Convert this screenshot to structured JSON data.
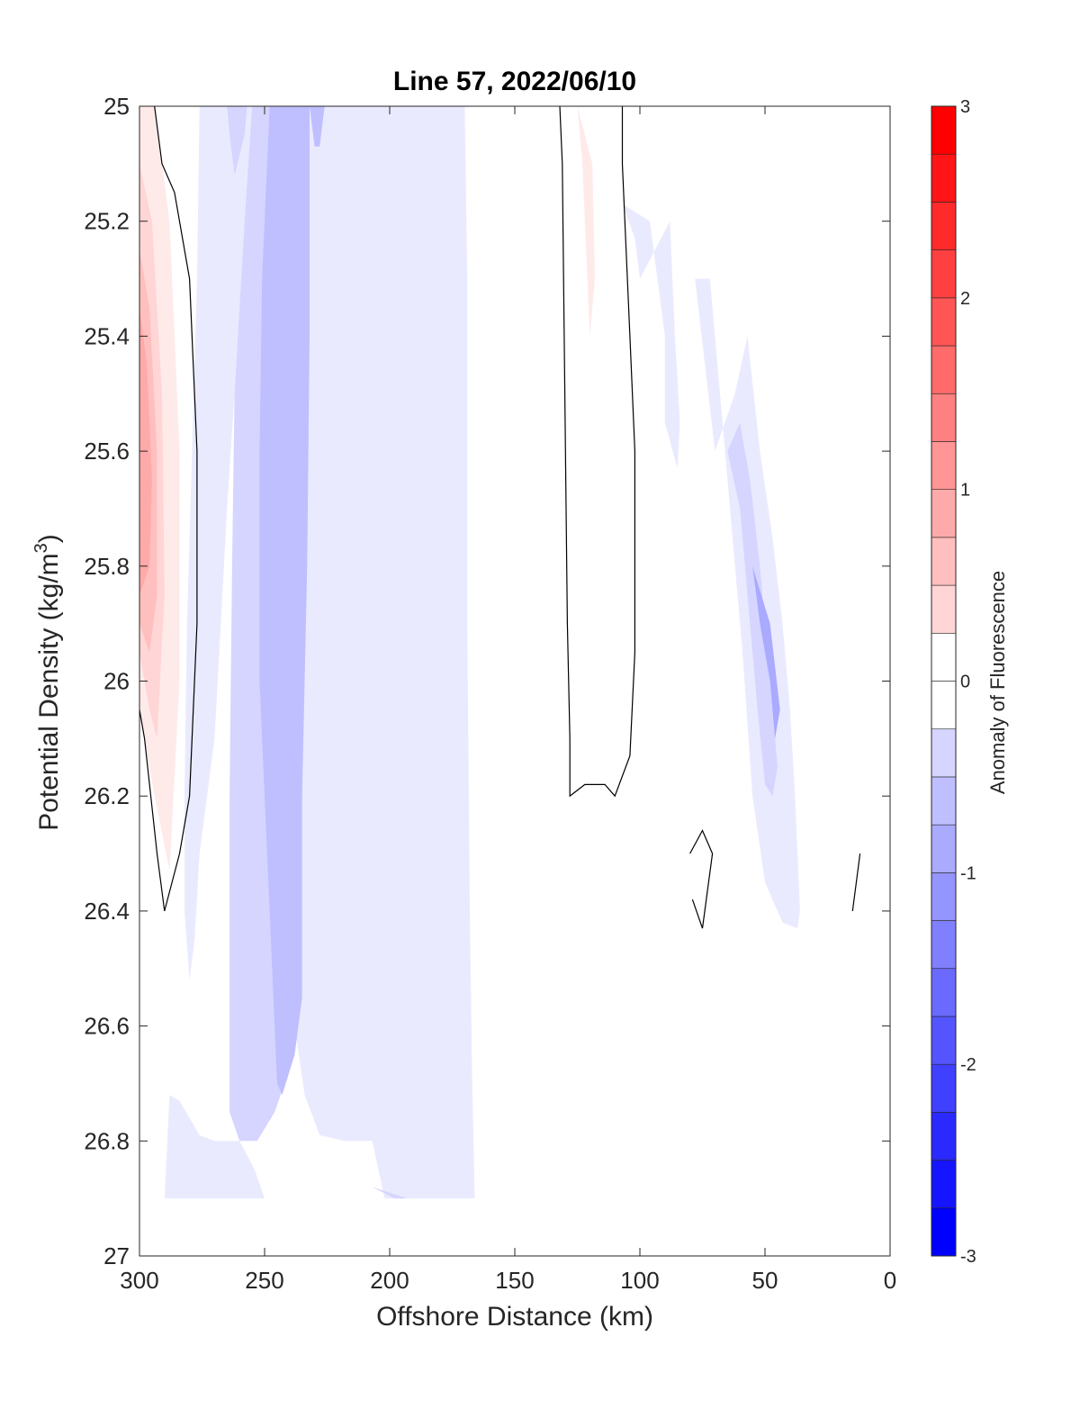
{
  "chart_data": {
    "type": "heatmap",
    "title": "Line 57, 2022/06/10",
    "xlabel": "Offshore Distance (km)",
    "ylabel_text": "Potential Density (kg/m",
    "ylabel_sup": "3",
    "ylabel_close": ")",
    "xlim": [
      300,
      0
    ],
    "x_reversed": true,
    "ylim": [
      27,
      25
    ],
    "y_reversed": true,
    "x_ticks": [
      300,
      250,
      200,
      150,
      100,
      50,
      0
    ],
    "x_tick_labels": [
      "300",
      "250",
      "200",
      "150",
      "100",
      "50",
      "0"
    ],
    "y_ticks": [
      25,
      25.2,
      25.4,
      25.6,
      25.8,
      26,
      26.2,
      26.4,
      26.6,
      26.8,
      27
    ],
    "y_tick_labels": [
      "25",
      "25.2",
      "25.4",
      "25.6",
      "25.8",
      "26",
      "26.2",
      "26.4",
      "26.6",
      "26.8",
      "27"
    ],
    "colorbar": {
      "label": "Anomaly of Fluorescence",
      "range": [
        -3,
        3
      ],
      "ticks": [
        -3,
        -2,
        -1,
        0,
        1,
        2,
        3
      ],
      "tick_labels": [
        "-3",
        "-2",
        "-1",
        "0",
        "1",
        "2",
        "3"
      ],
      "levels": [
        -3,
        -2.75,
        -2.5,
        -2.25,
        -2,
        -1.75,
        -1.5,
        -1.25,
        -1,
        -0.75,
        -0.5,
        -0.25,
        0,
        0.25,
        0.5,
        0.75,
        1,
        1.25,
        1.5,
        1.75,
        2,
        2.25,
        2.5,
        2.75,
        3
      ],
      "colormap": "blue-white-red diverging",
      "color_negative": "#0000ff",
      "color_zero": "#ffffff",
      "color_positive": "#ff0000"
    },
    "regions": [
      {
        "level": 0.25,
        "points": [
          [
            300,
            25.0
          ],
          [
            294,
            25.0
          ],
          [
            288,
            25.2
          ],
          [
            284,
            25.6
          ],
          [
            284,
            26.0
          ],
          [
            288,
            26.33
          ],
          [
            294,
            26.2
          ],
          [
            300,
            26.05
          ]
        ]
      },
      {
        "level": 0.5,
        "points": [
          [
            300,
            25.1
          ],
          [
            295,
            25.2
          ],
          [
            291,
            25.5
          ],
          [
            290,
            25.85
          ],
          [
            293,
            26.1
          ],
          [
            296,
            26.05
          ],
          [
            300,
            25.95
          ]
        ]
      },
      {
        "level": 0.75,
        "points": [
          [
            300,
            25.25
          ],
          [
            296,
            25.35
          ],
          [
            293,
            25.6
          ],
          [
            293,
            25.85
          ],
          [
            296,
            25.95
          ],
          [
            300,
            25.9
          ]
        ]
      },
      {
        "level": 1.0,
        "points": [
          [
            300,
            25.35
          ],
          [
            297,
            25.45
          ],
          [
            295,
            25.65
          ],
          [
            296,
            25.8
          ],
          [
            300,
            25.85
          ]
        ]
      },
      {
        "level": 0.25,
        "points": [
          [
            125,
            25.0
          ],
          [
            123,
            25.1
          ],
          [
            120,
            25.4
          ],
          [
            118,
            25.3
          ],
          [
            119,
            25.1
          ]
        ]
      },
      {
        "level": -0.25,
        "points": [
          [
            290,
            26.9
          ],
          [
            288,
            26.72
          ],
          [
            284,
            26.73
          ],
          [
            276,
            26.79
          ],
          [
            270,
            26.8
          ],
          [
            260,
            26.8
          ],
          [
            254,
            26.85
          ],
          [
            250,
            26.9
          ]
        ]
      },
      {
        "level": -0.25,
        "points": [
          [
            276,
            25.0
          ],
          [
            266,
            25.0
          ],
          [
            256,
            25.0
          ],
          [
            246,
            25.0
          ],
          [
            230,
            25.0
          ],
          [
            226,
            25.0
          ],
          [
            215,
            25.0
          ],
          [
            193,
            25.0
          ],
          [
            175,
            25.0
          ],
          [
            170,
            25.0
          ],
          [
            169,
            25.3
          ],
          [
            169,
            25.9
          ],
          [
            168,
            26.4
          ],
          [
            167,
            26.7
          ],
          [
            166,
            26.9
          ],
          [
            180,
            26.9
          ],
          [
            202,
            26.9
          ],
          [
            207,
            26.8
          ],
          [
            218,
            26.8
          ],
          [
            228,
            26.79
          ],
          [
            234,
            26.72
          ],
          [
            238,
            26.6
          ],
          [
            238,
            26.45
          ],
          [
            239,
            26.2
          ],
          [
            240,
            25.7
          ],
          [
            242,
            25.4
          ],
          [
            243,
            25.25
          ],
          [
            249,
            25.2
          ],
          [
            255,
            25.3
          ],
          [
            262,
            25.5
          ],
          [
            265,
            25.7
          ],
          [
            270,
            26.1
          ],
          [
            276,
            26.3
          ],
          [
            278,
            26.45
          ],
          [
            280,
            26.52
          ],
          [
            282,
            26.4
          ],
          [
            282,
            26.2
          ],
          [
            281,
            25.9
          ],
          [
            279,
            25.6
          ],
          [
            277,
            25.3
          ]
        ]
      },
      {
        "level": -0.5,
        "points": [
          [
            255,
            25.0
          ],
          [
            245,
            25.0
          ],
          [
            239,
            25.0
          ],
          [
            236,
            25.1
          ],
          [
            235,
            25.5
          ],
          [
            235,
            26.0
          ],
          [
            236,
            26.4
          ],
          [
            238,
            26.6
          ],
          [
            242,
            26.7
          ],
          [
            246,
            26.75
          ],
          [
            253,
            26.8
          ],
          [
            260,
            26.8
          ],
          [
            264,
            26.75
          ],
          [
            264,
            26.5
          ],
          [
            264,
            26.2
          ],
          [
            263,
            25.8
          ],
          [
            262,
            25.5
          ],
          [
            258,
            25.2
          ]
        ]
      },
      {
        "level": -0.75,
        "points": [
          [
            237,
            25.0
          ],
          [
            232,
            25.0
          ],
          [
            232,
            25.4
          ],
          [
            233,
            25.8
          ],
          [
            235,
            26.2
          ],
          [
            235,
            26.55
          ],
          [
            238,
            26.65
          ],
          [
            243,
            26.72
          ],
          [
            245,
            26.7
          ],
          [
            248,
            26.4
          ],
          [
            252,
            26.0
          ],
          [
            252,
            25.6
          ],
          [
            251,
            25.3
          ],
          [
            248,
            25.0
          ]
        ]
      },
      {
        "level": -0.5,
        "points": [
          [
            270,
            25.0
          ],
          [
            265,
            25.0
          ],
          [
            264,
            25.05
          ],
          [
            262,
            25.12
          ],
          [
            258,
            25.05
          ],
          [
            257,
            25.0
          ]
        ]
      },
      {
        "level": -0.75,
        "points": [
          [
            232,
            25.0
          ],
          [
            226,
            25.0
          ],
          [
            228,
            25.07
          ],
          [
            230,
            25.07
          ]
        ]
      },
      {
        "level": -0.5,
        "points": [
          [
            207,
            26.88
          ],
          [
            198,
            26.9
          ],
          [
            193,
            26.9
          ]
        ]
      },
      {
        "level": -0.25,
        "points": [
          [
            100,
            25.3
          ],
          [
            102,
            25.23
          ],
          [
            107,
            25.17
          ],
          [
            96,
            25.2
          ],
          [
            90,
            25.4
          ],
          [
            90,
            25.55
          ],
          [
            85,
            25.63
          ],
          [
            84,
            25.55
          ],
          [
            86,
            25.4
          ],
          [
            88,
            25.2
          ]
        ]
      },
      {
        "level": -0.25,
        "points": [
          [
            78,
            25.3
          ],
          [
            72,
            25.3
          ],
          [
            68,
            25.5
          ],
          [
            63,
            25.75
          ],
          [
            59,
            25.95
          ],
          [
            55,
            26.2
          ],
          [
            50,
            26.35
          ],
          [
            43,
            26.42
          ],
          [
            37,
            26.43
          ],
          [
            36,
            26.4
          ],
          [
            38,
            26.2
          ],
          [
            40,
            26.05
          ],
          [
            43,
            25.9
          ],
          [
            47,
            25.75
          ],
          [
            52,
            25.6
          ],
          [
            57,
            25.4
          ],
          [
            62,
            25.5
          ],
          [
            70,
            25.6
          ]
        ]
      },
      {
        "level": -0.5,
        "points": [
          [
            65,
            25.6
          ],
          [
            60,
            25.7
          ],
          [
            56,
            25.9
          ],
          [
            53,
            26.05
          ],
          [
            50,
            26.18
          ],
          [
            47,
            26.2
          ],
          [
            45,
            26.15
          ],
          [
            48,
            26.0
          ],
          [
            52,
            25.8
          ],
          [
            56,
            25.65
          ],
          [
            60,
            25.55
          ]
        ]
      },
      {
        "level": -1.0,
        "points": [
          [
            55,
            25.8
          ],
          [
            52,
            25.9
          ],
          [
            48,
            26.0
          ],
          [
            46,
            26.1
          ],
          [
            44,
            26.05
          ],
          [
            48,
            25.9
          ]
        ]
      }
    ],
    "zero_contours": [
      {
        "points": [
          [
            294,
            25.0
          ],
          [
            291,
            25.1
          ],
          [
            286,
            25.15
          ],
          [
            280,
            25.3
          ],
          [
            277,
            25.6
          ],
          [
            277,
            25.9
          ],
          [
            280,
            26.2
          ],
          [
            284,
            26.3
          ],
          [
            290,
            26.4
          ],
          [
            293,
            26.3
          ],
          [
            298,
            26.1
          ],
          [
            300,
            26.05
          ]
        ]
      },
      {
        "points": [
          [
            132,
            25.0
          ],
          [
            131,
            25.1
          ],
          [
            130,
            25.5
          ],
          [
            129,
            25.9
          ],
          [
            128,
            26.1
          ],
          [
            128,
            26.2
          ],
          [
            122,
            26.18
          ],
          [
            114,
            26.18
          ],
          [
            110,
            26.2
          ],
          [
            104,
            26.13
          ],
          [
            102,
            25.95
          ],
          [
            102,
            25.6
          ],
          [
            104,
            25.4
          ],
          [
            107,
            25.1
          ],
          [
            107,
            25.0
          ]
        ]
      },
      {
        "points": [
          [
            80,
            26.3
          ],
          [
            75,
            26.26
          ],
          [
            71,
            26.3
          ],
          [
            75,
            26.43
          ],
          [
            79,
            26.38
          ]
        ]
      },
      {
        "points": [
          [
            12,
            26.3
          ],
          [
            15,
            26.4
          ]
        ]
      }
    ]
  }
}
